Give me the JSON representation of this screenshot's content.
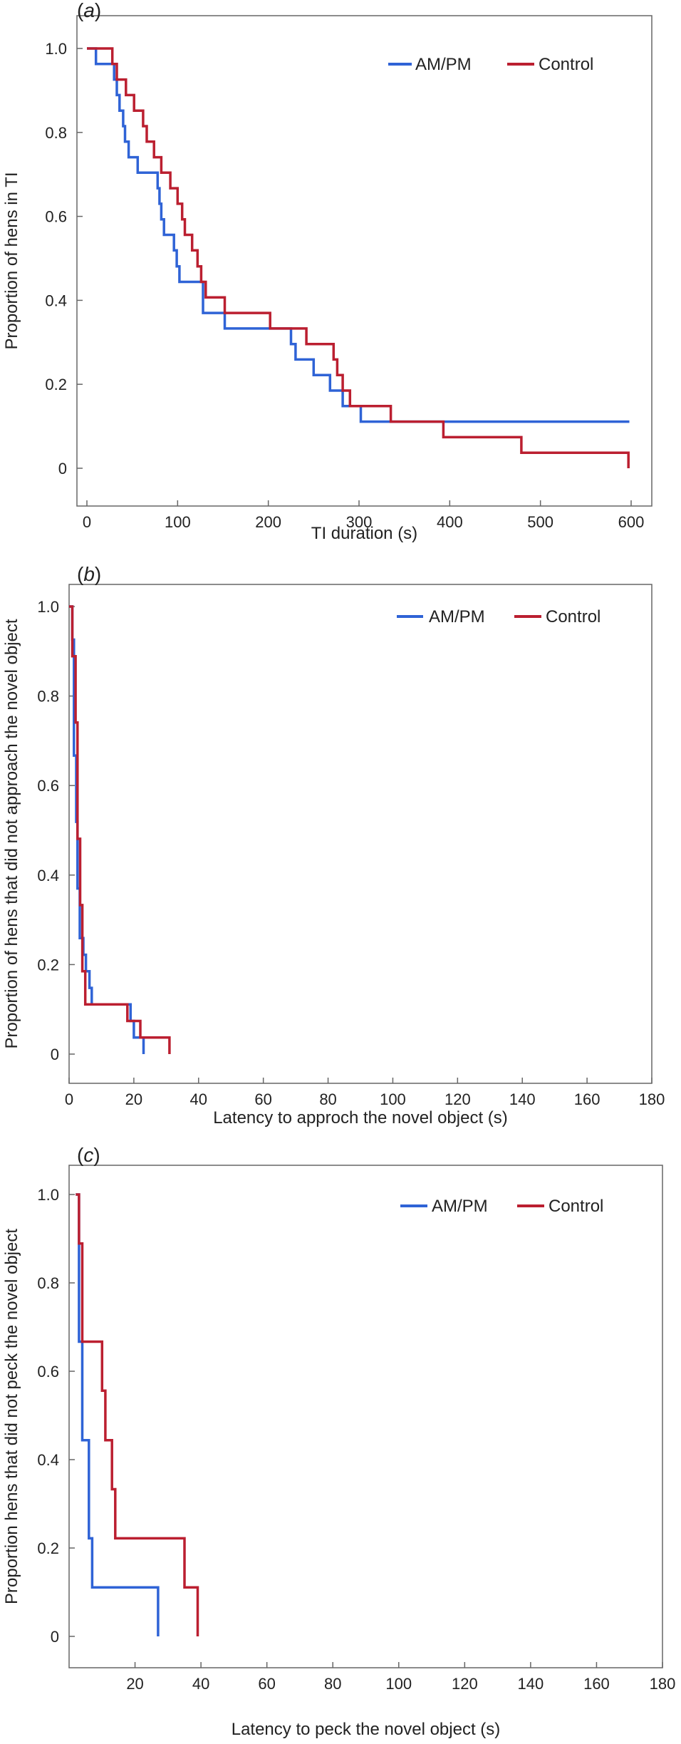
{
  "colors": {
    "am_pm": "#2f63d6",
    "control": "#bb1f30",
    "axis": "#666666",
    "text": "#222222"
  },
  "chart_data": [
    {
      "panel": "a",
      "panel_label": "(a)",
      "type": "line",
      "step": true,
      "xlabel": "TI duration (s)",
      "ylabel": "Proportion of hens in TI",
      "xlim": [
        0,
        600
      ],
      "ylim": [
        0,
        1.0
      ],
      "xticks": [
        0,
        100,
        200,
        300,
        400,
        500,
        600
      ],
      "yticks": [
        0,
        0.2,
        0.4,
        0.6,
        0.8,
        1.0
      ],
      "ytick_labels": [
        "0",
        "0.2",
        "0.4",
        "0.6",
        "0.8",
        "1.0"
      ],
      "grid": false,
      "legend_position": "top-right",
      "series": [
        {
          "name": "AM/PM",
          "color_key": "am_pm",
          "points": [
            [
              0,
              1.0
            ],
            [
              10,
              1.0
            ],
            [
              10,
              0.963
            ],
            [
              30,
              0.963
            ],
            [
              30,
              0.926
            ],
            [
              33,
              0.926
            ],
            [
              33,
              0.889
            ],
            [
              36,
              0.889
            ],
            [
              36,
              0.852
            ],
            [
              40,
              0.852
            ],
            [
              40,
              0.815
            ],
            [
              42,
              0.815
            ],
            [
              42,
              0.778
            ],
            [
              46,
              0.778
            ],
            [
              46,
              0.741
            ],
            [
              56,
              0.741
            ],
            [
              56,
              0.704
            ],
            [
              78,
              0.704
            ],
            [
              78,
              0.667
            ],
            [
              80,
              0.667
            ],
            [
              80,
              0.63
            ],
            [
              82,
              0.63
            ],
            [
              82,
              0.593
            ],
            [
              85,
              0.593
            ],
            [
              85,
              0.556
            ],
            [
              96,
              0.556
            ],
            [
              96,
              0.519
            ],
            [
              99,
              0.519
            ],
            [
              99,
              0.481
            ],
            [
              102,
              0.481
            ],
            [
              102,
              0.444
            ],
            [
              128,
              0.444
            ],
            [
              128,
              0.37
            ],
            [
              152,
              0.37
            ],
            [
              152,
              0.333
            ],
            [
              225,
              0.333
            ],
            [
              225,
              0.296
            ],
            [
              230,
              0.296
            ],
            [
              230,
              0.259
            ],
            [
              250,
              0.259
            ],
            [
              250,
              0.222
            ],
            [
              268,
              0.222
            ],
            [
              268,
              0.185
            ],
            [
              282,
              0.185
            ],
            [
              282,
              0.148
            ],
            [
              302,
              0.148
            ],
            [
              302,
              0.111
            ],
            [
              598,
              0.111
            ]
          ]
        },
        {
          "name": "Control",
          "color_key": "control",
          "points": [
            [
              0,
              1.0
            ],
            [
              28,
              1.0
            ],
            [
              28,
              0.963
            ],
            [
              33,
              0.963
            ],
            [
              33,
              0.926
            ],
            [
              43,
              0.926
            ],
            [
              43,
              0.889
            ],
            [
              52,
              0.889
            ],
            [
              52,
              0.852
            ],
            [
              62,
              0.852
            ],
            [
              62,
              0.815
            ],
            [
              66,
              0.815
            ],
            [
              66,
              0.778
            ],
            [
              74,
              0.778
            ],
            [
              74,
              0.741
            ],
            [
              82,
              0.741
            ],
            [
              82,
              0.704
            ],
            [
              92,
              0.704
            ],
            [
              92,
              0.667
            ],
            [
              100,
              0.667
            ],
            [
              100,
              0.63
            ],
            [
              105,
              0.63
            ],
            [
              105,
              0.593
            ],
            [
              108,
              0.593
            ],
            [
              108,
              0.556
            ],
            [
              116,
              0.556
            ],
            [
              116,
              0.519
            ],
            [
              122,
              0.519
            ],
            [
              122,
              0.481
            ],
            [
              126,
              0.481
            ],
            [
              126,
              0.444
            ],
            [
              131,
              0.444
            ],
            [
              131,
              0.407
            ],
            [
              152,
              0.407
            ],
            [
              152,
              0.37
            ],
            [
              202,
              0.37
            ],
            [
              202,
              0.333
            ],
            [
              242,
              0.333
            ],
            [
              242,
              0.296
            ],
            [
              272,
              0.296
            ],
            [
              272,
              0.259
            ],
            [
              276,
              0.259
            ],
            [
              276,
              0.222
            ],
            [
              282,
              0.222
            ],
            [
              282,
              0.185
            ],
            [
              290,
              0.185
            ],
            [
              290,
              0.148
            ],
            [
              335,
              0.148
            ],
            [
              335,
              0.111
            ],
            [
              393,
              0.111
            ],
            [
              393,
              0.074
            ],
            [
              479,
              0.074
            ],
            [
              479,
              0.037
            ],
            [
              597,
              0.037
            ],
            [
              597,
              0.0
            ]
          ]
        }
      ]
    },
    {
      "panel": "b",
      "panel_label": "(b)",
      "type": "line",
      "step": true,
      "xlabel": "Latency to approch the novel object (s)",
      "ylabel": "Proportion of hens that did not approach the novel object",
      "xlim": [
        0,
        180
      ],
      "ylim": [
        0,
        1.0
      ],
      "xticks": [
        0,
        20,
        40,
        60,
        80,
        100,
        120,
        140,
        160,
        180
      ],
      "yticks": [
        0,
        0.2,
        0.4,
        0.6,
        0.8,
        1.0
      ],
      "ytick_labels": [
        "0",
        "0.2",
        "0.4",
        "0.6",
        "0.8",
        "1.0"
      ],
      "grid": false,
      "legend_position": "top-right",
      "series": [
        {
          "name": "AM/PM",
          "color_key": "am_pm",
          "points": [
            [
              0,
              1.0
            ],
            [
              1,
              1.0
            ],
            [
              1,
              0.926
            ],
            [
              1.5,
              0.926
            ],
            [
              1.5,
              0.667
            ],
            [
              2.2,
              0.667
            ],
            [
              2.2,
              0.519
            ],
            [
              2.6,
              0.519
            ],
            [
              2.6,
              0.37
            ],
            [
              3.3,
              0.37
            ],
            [
              3.3,
              0.259
            ],
            [
              4.4,
              0.259
            ],
            [
              4.4,
              0.222
            ],
            [
              5.2,
              0.222
            ],
            [
              5.2,
              0.185
            ],
            [
              6.3,
              0.185
            ],
            [
              6.3,
              0.148
            ],
            [
              7,
              0.148
            ],
            [
              7,
              0.111
            ],
            [
              19,
              0.111
            ],
            [
              19,
              0.074
            ],
            [
              20,
              0.074
            ],
            [
              20,
              0.037
            ],
            [
              23,
              0.037
            ],
            [
              23,
              0.0
            ]
          ]
        },
        {
          "name": "Control",
          "color_key": "control",
          "points": [
            [
              0,
              1.0
            ],
            [
              1,
              1.0
            ],
            [
              1,
              0.889
            ],
            [
              2,
              0.889
            ],
            [
              2,
              0.741
            ],
            [
              2.6,
              0.741
            ],
            [
              2.6,
              0.481
            ],
            [
              3.4,
              0.481
            ],
            [
              3.4,
              0.333
            ],
            [
              4.1,
              0.333
            ],
            [
              4.1,
              0.185
            ],
            [
              5,
              0.185
            ],
            [
              5,
              0.111
            ],
            [
              18,
              0.111
            ],
            [
              18,
              0.074
            ],
            [
              22,
              0.074
            ],
            [
              22,
              0.037
            ],
            [
              31,
              0.037
            ],
            [
              31,
              0.0
            ]
          ]
        }
      ]
    },
    {
      "panel": "c",
      "panel_label": "(c)",
      "type": "line",
      "step": true,
      "xlabel": "Latency to peck the novel object (s)",
      "ylabel": "Proportion hens that did not peck the novel object",
      "xlim": [
        0,
        180
      ],
      "ylim": [
        0,
        1.0
      ],
      "xticks": [
        20,
        40,
        60,
        80,
        100,
        120,
        140,
        160,
        180
      ],
      "yticks": [
        0,
        0.2,
        0.4,
        0.6,
        0.8,
        1.0
      ],
      "ytick_labels": [
        "0",
        "0.2",
        "0.4",
        "0.6",
        "0.8",
        "1.0"
      ],
      "grid": false,
      "legend_position": "top-right",
      "series": [
        {
          "name": "AM/PM",
          "color_key": "am_pm",
          "points": [
            [
              2,
              1.0
            ],
            [
              3,
              1.0
            ],
            [
              3,
              0.667
            ],
            [
              4,
              0.667
            ],
            [
              4,
              0.444
            ],
            [
              6,
              0.444
            ],
            [
              6,
              0.222
            ],
            [
              7,
              0.222
            ],
            [
              7,
              0.111
            ],
            [
              27,
              0.111
            ],
            [
              27,
              0.0
            ]
          ]
        },
        {
          "name": "Control",
          "color_key": "control",
          "points": [
            [
              2,
              1.0
            ],
            [
              3,
              1.0
            ],
            [
              3,
              0.889
            ],
            [
              4,
              0.889
            ],
            [
              4,
              0.667
            ],
            [
              10,
              0.667
            ],
            [
              10,
              0.556
            ],
            [
              11,
              0.556
            ],
            [
              11,
              0.444
            ],
            [
              13,
              0.444
            ],
            [
              13,
              0.333
            ],
            [
              14,
              0.333
            ],
            [
              14,
              0.222
            ],
            [
              35,
              0.222
            ],
            [
              35,
              0.111
            ],
            [
              39,
              0.111
            ],
            [
              39,
              0.0
            ]
          ]
        }
      ]
    }
  ]
}
